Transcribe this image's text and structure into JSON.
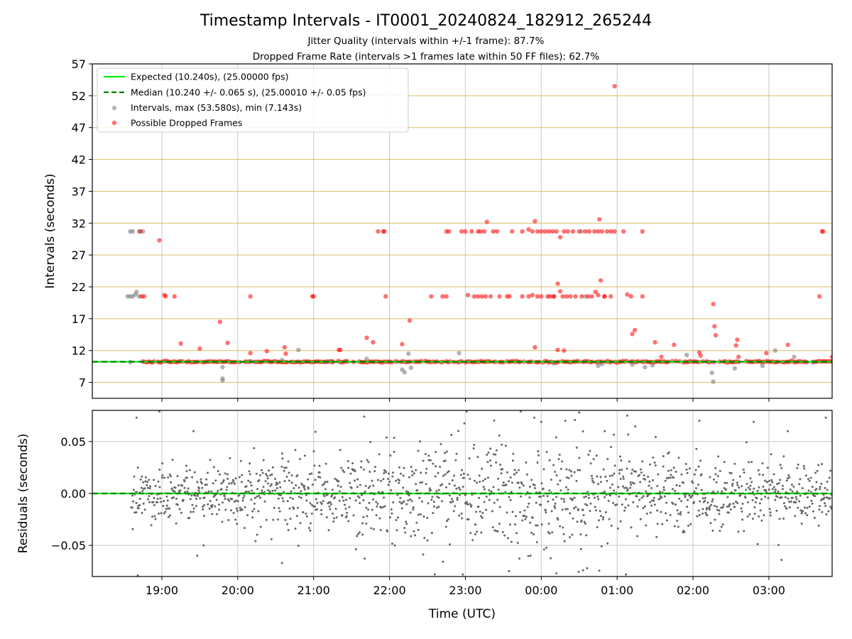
{
  "figure": {
    "title": "Timestamp Intervals - IT0001_20240824_182912_265244",
    "subtitle_1": "Jitter Quality (intervals within +/-1 frame): 87.7%",
    "subtitle_2": "Dropped Frame Rate (intervals >1 frames late within 50 FF files): 62.7%"
  },
  "colors": {
    "expected_line": "#00ee00",
    "median_line": "#008000",
    "intervals_points": "#808080",
    "dropped_points": "#ff0000",
    "frame_gridlines": "#d2b04c",
    "residual_points": "#666666"
  },
  "chart_data": [
    {
      "type": "scatter",
      "ylabel": "Intervals (seconds)",
      "ylim": [
        4.5,
        57
      ],
      "xlim": [
        "18:05",
        "03:50"
      ],
      "yticks": [
        "7",
        "12",
        "17",
        "22",
        "27",
        "32",
        "37",
        "42",
        "47",
        "52",
        "57"
      ],
      "grid": "on",
      "legend_position": "top-left",
      "legend": [
        "Expected (10.240s), (25.00000 fps)",
        "Median (10.240 +/- 0.065 s), (25.00010 +/- 0.05 fps)",
        "Intervals, max (53.580s), min (7.143s)",
        "Possible Dropped Frames"
      ],
      "lines": [
        {
          "name": "Expected (10.240s), (25.00000 fps)",
          "y": 10.24,
          "style": "solid"
        },
        {
          "name": "Median (10.240 +/- 0.065 s), (25.00010 +/- 0.05 fps)",
          "y": 10.24,
          "style": "dashed"
        }
      ],
      "series": [
        {
          "name": "Intervals, max (53.580s), min (7.143s)",
          "points": [
            [
              "18:35",
              30.7
            ],
            [
              "18:37",
              30.7
            ],
            [
              "18:42",
              30.7
            ],
            [
              "18:45",
              30.7
            ],
            [
              "18:33",
              20.5
            ],
            [
              "18:35",
              20.5
            ],
            [
              "18:37",
              20.5
            ],
            [
              "18:39",
              20.8
            ],
            [
              "18:40",
              21.2
            ],
            [
              "18:42",
              20.5
            ],
            [
              "18:35",
              10.2
            ],
            [
              "19:48",
              9.4
            ],
            [
              "19:48",
              7.6
            ],
            [
              "19:48",
              7.3
            ],
            [
              "20:10",
              10.3
            ],
            [
              "20:35",
              10.5
            ],
            [
              "20:48",
              12.1
            ],
            [
              "21:10",
              10.2
            ],
            [
              "21:42",
              10.7
            ],
            [
              "22:10",
              9.0
            ],
            [
              "22:12",
              8.6
            ],
            [
              "22:15",
              11.5
            ],
            [
              "22:17",
              9.3
            ],
            [
              "22:55",
              11.6
            ],
            [
              "00:10",
              10.0
            ],
            [
              "00:45",
              9.6
            ],
            [
              "00:48",
              9.9
            ],
            [
              "01:12",
              9.8
            ],
            [
              "01:22",
              9.4
            ],
            [
              "01:28",
              9.7
            ],
            [
              "01:55",
              11.3
            ],
            [
              "02:15",
              8.5
            ],
            [
              "02:16",
              7.1
            ],
            [
              "02:33",
              9.2
            ],
            [
              "02:55",
              9.6
            ],
            [
              "03:05",
              12.0
            ],
            [
              "03:20",
              11.0
            ],
            [
              "03:35",
              10.2
            ],
            [
              "00:32",
              30.7
            ],
            [
              "00:35",
              20.5
            ]
          ]
        },
        {
          "name": "Possible Dropped Frames",
          "points": [
            [
              "18:43",
              30.7
            ],
            [
              "18:44",
              20.5
            ],
            [
              "18:46",
              20.5
            ],
            [
              "18:58",
              29.3
            ],
            [
              "19:02",
              20.7
            ],
            [
              "19:03",
              20.5
            ],
            [
              "19:10",
              20.5
            ],
            [
              "19:15",
              13.1
            ],
            [
              "19:30",
              12.3
            ],
            [
              "19:46",
              16.5
            ],
            [
              "19:52",
              13.2
            ],
            [
              "20:10",
              11.6
            ],
            [
              "20:10",
              20.5
            ],
            [
              "20:23",
              11.9
            ],
            [
              "20:37",
              12.5
            ],
            [
              "20:38",
              11.5
            ],
            [
              "20:59",
              20.5
            ],
            [
              "21:00",
              20.5
            ],
            [
              "21:20",
              12.1
            ],
            [
              "21:21",
              12.1
            ],
            [
              "21:42",
              14.0
            ],
            [
              "21:47",
              13.3
            ],
            [
              "21:51",
              30.7
            ],
            [
              "21:55",
              30.7
            ],
            [
              "21:56",
              30.7
            ],
            [
              "21:57",
              20.5
            ],
            [
              "22:10",
              13.0
            ],
            [
              "22:16",
              16.7
            ],
            [
              "22:33",
              20.5
            ],
            [
              "22:42",
              20.5
            ],
            [
              "22:45",
              20.5
            ],
            [
              "22:45",
              30.7
            ],
            [
              "22:47",
              30.7
            ],
            [
              "22:57",
              30.7
            ],
            [
              "23:00",
              30.7
            ],
            [
              "23:05",
              30.7
            ],
            [
              "23:10",
              30.7
            ],
            [
              "23:12",
              30.7
            ],
            [
              "23:15",
              30.7
            ],
            [
              "23:17",
              32.2
            ],
            [
              "23:22",
              30.7
            ],
            [
              "23:25",
              30.7
            ],
            [
              "23:02",
              20.7
            ],
            [
              "23:07",
              20.5
            ],
            [
              "23:10",
              20.5
            ],
            [
              "23:13",
              20.5
            ],
            [
              "23:16",
              20.5
            ],
            [
              "23:20",
              20.5
            ],
            [
              "23:27",
              20.5
            ],
            [
              "23:33",
              20.5
            ],
            [
              "23:37",
              30.7
            ],
            [
              "23:45",
              30.7
            ],
            [
              "23:50",
              31.0
            ],
            [
              "23:53",
              30.7
            ],
            [
              "23:55",
              32.3
            ],
            [
              "23:57",
              30.7
            ],
            [
              "23:50",
              20.5
            ],
            [
              "23:53",
              20.7
            ],
            [
              "23:57",
              20.5
            ],
            [
              "00:00",
              30.7
            ],
            [
              "00:03",
              30.7
            ],
            [
              "00:06",
              30.7
            ],
            [
              "00:09",
              30.7
            ],
            [
              "00:12",
              30.7
            ],
            [
              "00:15",
              29.8
            ],
            [
              "00:18",
              30.7
            ],
            [
              "00:21",
              30.7
            ],
            [
              "00:25",
              30.7
            ],
            [
              "00:30",
              30.7
            ],
            [
              "00:35",
              30.7
            ],
            [
              "00:38",
              30.7
            ],
            [
              "00:42",
              30.7
            ],
            [
              "00:45",
              30.7
            ],
            [
              "00:46",
              32.6
            ],
            [
              "00:48",
              30.7
            ],
            [
              "00:52",
              30.7
            ],
            [
              "00:58",
              30.7
            ],
            [
              "01:05",
              30.7
            ],
            [
              "01:20",
              30.7
            ],
            [
              "00:05",
              20.5
            ],
            [
              "00:10",
              20.5
            ],
            [
              "00:13",
              22.5
            ],
            [
              "00:15",
              21.3
            ],
            [
              "00:17",
              20.5
            ],
            [
              "00:20",
              20.5
            ],
            [
              "00:23",
              20.5
            ],
            [
              "00:27",
              20.5
            ],
            [
              "00:32",
              20.5
            ],
            [
              "00:37",
              20.5
            ],
            [
              "00:40",
              20.5
            ],
            [
              "00:43",
              21.2
            ],
            [
              "00:45",
              20.7
            ],
            [
              "00:47",
              23.0
            ],
            [
              "00:50",
              20.5
            ],
            [
              "00:55",
              20.5
            ],
            [
              "01:08",
              20.8
            ],
            [
              "01:11",
              20.5
            ],
            [
              "00:07",
              20.5
            ],
            [
              "00:50",
              20.5
            ],
            [
              "00:10",
              20.5
            ],
            [
              "00:00",
              20.5
            ],
            [
              "23:45",
              20.5
            ],
            [
              "23:35",
              20.5
            ],
            [
              "00:55",
              30.7
            ],
            [
              "00:58",
              53.5
            ],
            [
              "01:12",
              14.6
            ],
            [
              "01:14",
              15.2
            ],
            [
              "01:20",
              20.5
            ],
            [
              "01:30",
              13.3
            ],
            [
              "01:35",
              11.0
            ],
            [
              "01:45",
              12.9
            ],
            [
              "02:05",
              11.7
            ],
            [
              "02:06",
              11.2
            ],
            [
              "02:16",
              19.3
            ],
            [
              "02:17",
              15.8
            ],
            [
              "02:18",
              14.4
            ],
            [
              "02:35",
              13.7
            ],
            [
              "02:34",
              12.8
            ],
            [
              "02:36",
              11.0
            ],
            [
              "02:58",
              11.6
            ],
            [
              "03:15",
              12.9
            ],
            [
              "03:40",
              20.5
            ],
            [
              "03:42",
              30.7
            ],
            [
              "03:43",
              30.7
            ],
            [
              "03:50",
              11.0
            ],
            [
              "00:13",
              12.1
            ],
            [
              "23:55",
              12.5
            ],
            [
              "00:18",
              12.0
            ],
            [
              "21:15",
              10.3
            ]
          ],
          "baseline_band": {
            "from": "18:45",
            "to": "03:50",
            "y": 10.24,
            "note": "dense run of dropped-frame points along the expected interval"
          }
        }
      ]
    },
    {
      "type": "scatter",
      "ylabel": "Residuals (seconds)",
      "xlabel": "Time (UTC)",
      "xlim": [
        "18:05",
        "03:50"
      ],
      "ylim": [
        -0.08,
        0.08
      ],
      "yticks": [
        "−0.05",
        "0.00",
        "0.05"
      ],
      "xticks": [
        "19:00",
        "20:00",
        "21:00",
        "22:00",
        "23:00",
        "00:00",
        "01:00",
        "02:00",
        "03:00"
      ],
      "grid": "on",
      "series": [
        {
          "name": "",
          "start": "18:36",
          "end": "03:50",
          "count": 1500,
          "std_seconds": 0.018,
          "extreme_points": [
            [
              "18:40",
              0.073
            ],
            [
              "18:41",
              -0.079
            ],
            [
              "18:58",
              0.079
            ],
            [
              "19:25",
              0.06
            ],
            [
              "19:28",
              -0.06
            ],
            [
              "19:33",
              -0.05
            ],
            [
              "20:35",
              -0.067
            ],
            [
              "21:40",
              0.074
            ],
            [
              "23:01",
              0.079
            ],
            [
              "22:58",
              -0.078
            ],
            [
              "00:00",
              0.069
            ],
            [
              "00:12",
              -0.077
            ],
            [
              "00:19",
              0.07
            ],
            [
              "00:30",
              0.078
            ],
            [
              "00:33",
              -0.074
            ],
            [
              "01:07",
              -0.078
            ],
            [
              "01:08",
              0.075
            ],
            [
              "02:05",
              0.07
            ],
            [
              "02:48",
              0.069
            ],
            [
              "03:10",
              -0.064
            ],
            [
              "03:15",
              0.06
            ],
            [
              "03:45",
              0.073
            ]
          ]
        }
      ],
      "lines": [
        {
          "name": "Expected",
          "y": 0.0,
          "style": "solid"
        },
        {
          "name": "Median",
          "y": 0.0,
          "style": "dashed"
        }
      ]
    }
  ]
}
